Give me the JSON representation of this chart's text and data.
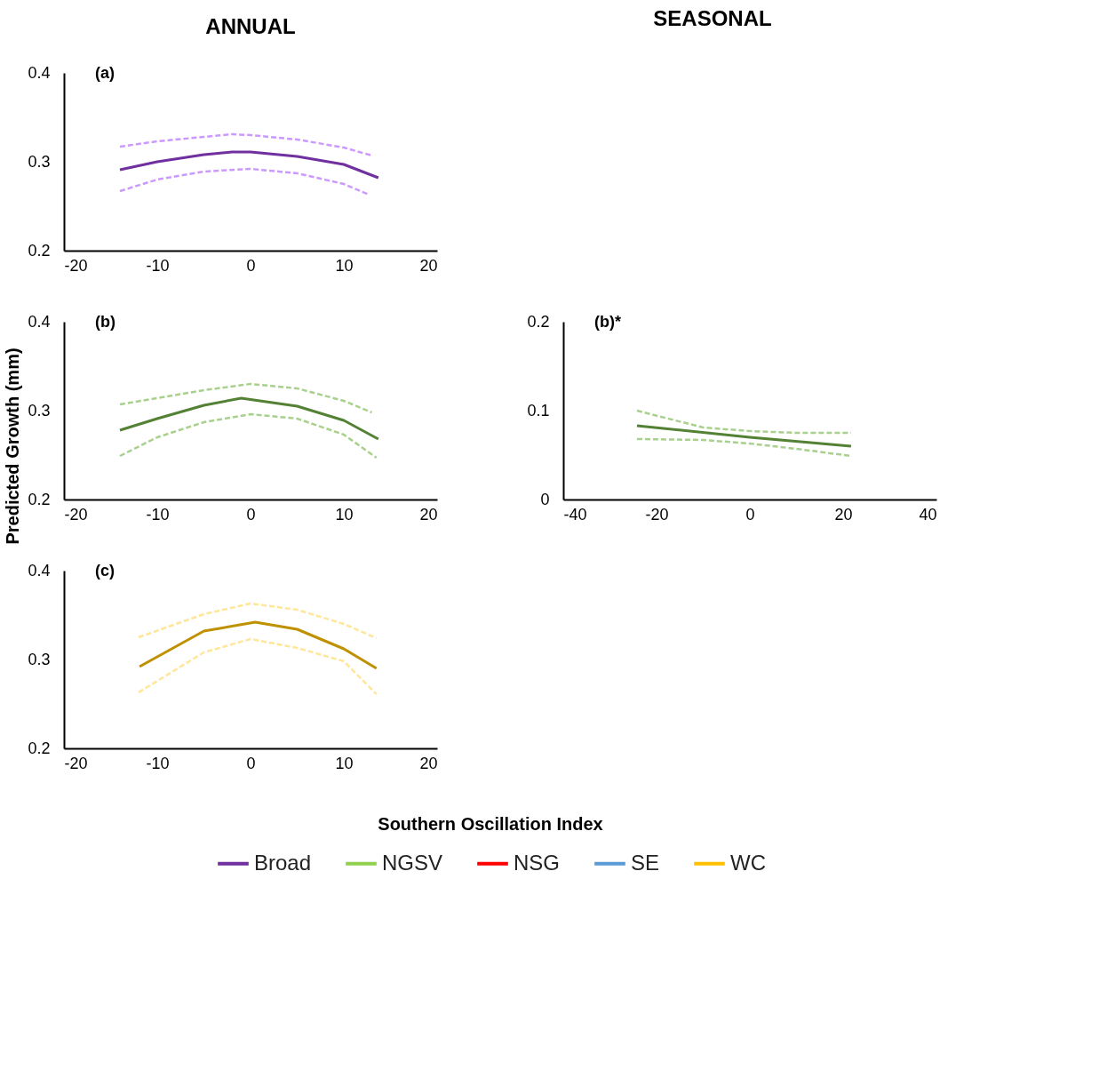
{
  "chart_data": [
    {
      "type": "line",
      "title": "ANNUAL",
      "annotations": [
        "(a)"
      ],
      "xlim": [
        -20,
        20
      ],
      "xticks": [
        -20,
        -10,
        0,
        10,
        20
      ],
      "ylim": [
        0.2,
        0.4
      ],
      "yticks": [
        0.2,
        0.3,
        0.4
      ],
      "grid": false,
      "series": [
        {
          "color": "#7030a0",
          "line_style": "solid",
          "x": [
            -14,
            -10,
            -5,
            -2,
            0,
            5,
            10,
            13.7
          ],
          "values": [
            0.291,
            0.3,
            0.308,
            0.311,
            0.311,
            0.306,
            0.297,
            0.282
          ]
        },
        {
          "color": "#cc99ff",
          "line_style": "dashed",
          "x": [
            -14,
            -10,
            -5,
            -2,
            0,
            5,
            10,
            13
          ],
          "values": [
            0.317,
            0.323,
            0.328,
            0.331,
            0.33,
            0.325,
            0.316,
            0.307
          ]
        },
        {
          "color": "#cc99ff",
          "line_style": "dashed",
          "x": [
            -14,
            -10,
            -5,
            0,
            5,
            10,
            12.7
          ],
          "values": [
            0.267,
            0.28,
            0.289,
            0.292,
            0.287,
            0.275,
            0.263
          ]
        }
      ]
    },
    {
      "type": "line",
      "annotations": [
        "(b)"
      ],
      "ylabel": "Predicted Growth (mm)",
      "xlim": [
        -20,
        20
      ],
      "xticks": [
        -20,
        -10,
        0,
        10,
        20
      ],
      "ylim": [
        0.2,
        0.4
      ],
      "yticks": [
        0.2,
        0.3,
        0.4
      ],
      "grid": false,
      "series": [
        {
          "color": "#548235",
          "line_style": "solid",
          "x": [
            -14,
            -10,
            -5,
            -1,
            5,
            10,
            13.7
          ],
          "values": [
            0.278,
            0.291,
            0.306,
            0.314,
            0.305,
            0.289,
            0.268
          ]
        },
        {
          "color": "#a9d18e",
          "line_style": "dashed",
          "x": [
            -14,
            -10,
            -5,
            0,
            5,
            10,
            13
          ],
          "values": [
            0.307,
            0.314,
            0.323,
            0.33,
            0.325,
            0.311,
            0.298
          ]
        },
        {
          "color": "#a9d18e",
          "line_style": "dashed",
          "x": [
            -14,
            -10,
            -5,
            0,
            5,
            10,
            13.5
          ],
          "values": [
            0.249,
            0.27,
            0.287,
            0.296,
            0.291,
            0.273,
            0.247
          ]
        }
      ]
    },
    {
      "type": "line",
      "title": "SEASONAL",
      "annotations": [
        "(b)*"
      ],
      "xlim": [
        -40,
        40
      ],
      "xticks": [
        -40,
        -20,
        0,
        20,
        40
      ],
      "ylim": [
        0,
        0.2
      ],
      "yticks": [
        0,
        0.1,
        0.2
      ],
      "grid": false,
      "series": [
        {
          "color": "#548235",
          "line_style": "solid",
          "x": [
            -24.2,
            0,
            21.7
          ],
          "values": [
            0.083,
            0.07,
            0.06
          ]
        },
        {
          "color": "#a9d18e",
          "line_style": "dashed",
          "x": [
            -24.2,
            -10,
            0,
            10,
            21.7
          ],
          "values": [
            0.1,
            0.081,
            0.077,
            0.075,
            0.075
          ]
        },
        {
          "color": "#a9d18e",
          "line_style": "dashed",
          "x": [
            -24.2,
            -10,
            0,
            10,
            21.7
          ],
          "values": [
            0.068,
            0.067,
            0.063,
            0.057,
            0.049
          ]
        }
      ]
    },
    {
      "type": "line",
      "annotations": [
        "(c)"
      ],
      "xlim": [
        -20,
        20
      ],
      "xticks": [
        -20,
        -10,
        0,
        10,
        20
      ],
      "ylim": [
        0.2,
        0.4
      ],
      "yticks": [
        0.2,
        0.3,
        0.4
      ],
      "grid": false,
      "series": [
        {
          "color": "#bf9000",
          "line_style": "solid",
          "x": [
            -11.9,
            -5,
            0.5,
            5,
            10,
            13.5
          ],
          "values": [
            0.292,
            0.332,
            0.342,
            0.334,
            0.312,
            0.29
          ]
        },
        {
          "color": "#ffe699",
          "line_style": "dashed",
          "x": [
            -12,
            -5,
            0,
            5,
            10,
            13.5
          ],
          "values": [
            0.325,
            0.351,
            0.363,
            0.356,
            0.34,
            0.324
          ]
        },
        {
          "color": "#ffe699",
          "line_style": "dashed",
          "x": [
            -12,
            -5,
            0,
            5,
            10,
            13.5
          ],
          "values": [
            0.263,
            0.308,
            0.323,
            0.313,
            0.298,
            0.261
          ]
        }
      ]
    },
    {
      "type": "other",
      "xlabel": "Southern Oscillation Index",
      "legend": "bottom",
      "series": [
        {
          "name": "Broad",
          "color": "#7030a0"
        },
        {
          "name": "NGSV",
          "color": "#92d050"
        },
        {
          "name": "NSG",
          "color": "#ff0000"
        },
        {
          "name": "SE",
          "color": "#5b9bd5"
        },
        {
          "name": "WC",
          "color": "#ffc000"
        }
      ]
    }
  ]
}
